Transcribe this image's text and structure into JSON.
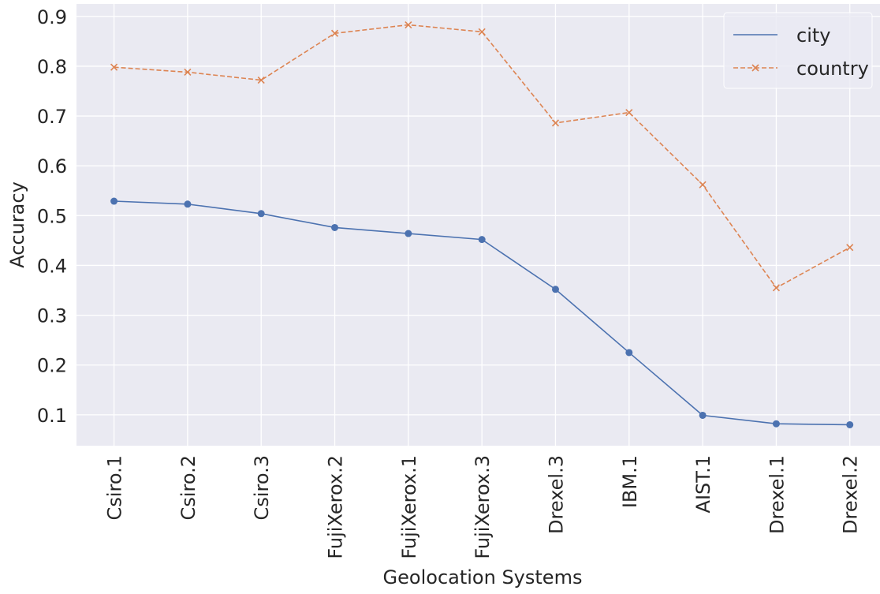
{
  "chart_data": {
    "type": "line",
    "x_label": "Geolocation Systems",
    "y_label": "Accuracy",
    "categories": [
      "Csiro.1",
      "Csiro.2",
      "Csiro.3",
      "FujiXerox.2",
      "FujiXerox.1",
      "FujiXerox.3",
      "Drexel.3",
      "IBM.1",
      "AIST.1",
      "Drexel.1",
      "Drexel.2"
    ],
    "series": [
      {
        "name": "city",
        "color": "#4c72b0",
        "dash": "solid",
        "marker": "circle",
        "values": [
          0.529,
          0.523,
          0.504,
          0.476,
          0.464,
          0.452,
          0.352,
          0.225,
          0.099,
          0.082,
          0.08
        ]
      },
      {
        "name": "country",
        "color": "#dd8452",
        "dash": "dashed",
        "marker": "x",
        "values": [
          0.798,
          0.788,
          0.772,
          0.866,
          0.883,
          0.869,
          0.686,
          0.707,
          0.562,
          0.355,
          0.436
        ]
      }
    ],
    "ylim": [
      0.038,
      0.925
    ],
    "yticks": [
      0.1,
      0.2,
      0.3,
      0.4,
      0.5,
      0.6,
      0.7,
      0.8,
      0.9
    ],
    "grid": true,
    "legend": "upper right"
  }
}
